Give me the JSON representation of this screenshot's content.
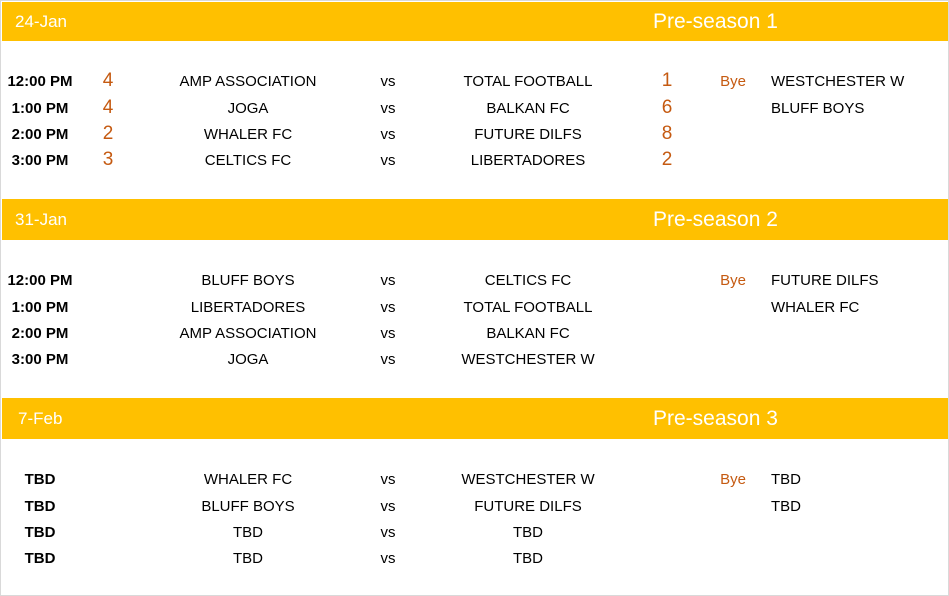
{
  "blocks": [
    {
      "date": "24-Jan",
      "season": "Pre-season 1",
      "bye_label": "Bye",
      "bye_teams": [
        "WESTCHESTER W",
        "BLUFF BOYS"
      ],
      "matches": [
        {
          "time": "12:00 PM",
          "home": "AMP ASSOCIATION",
          "vs": "vs",
          "away": "TOTAL FOOTBALL",
          "home_score": "4",
          "away_score": "1"
        },
        {
          "time": "1:00 PM",
          "home": "JOGA",
          "vs": "vs",
          "away": "BALKAN FC",
          "home_score": "4",
          "away_score": "6"
        },
        {
          "time": "2:00 PM",
          "home": "WHALER FC",
          "vs": "vs",
          "away": "FUTURE DILFS",
          "home_score": "2",
          "away_score": "8"
        },
        {
          "time": "3:00 PM",
          "home": "CELTICS FC",
          "vs": "vs",
          "away": "LIBERTADORES",
          "home_score": "3",
          "away_score": "2"
        }
      ]
    },
    {
      "date": "31-Jan",
      "season": "Pre-season 2",
      "bye_label": "Bye",
      "bye_teams": [
        "FUTURE DILFS",
        "WHALER FC"
      ],
      "matches": [
        {
          "time": "12:00 PM",
          "home": "BLUFF BOYS",
          "vs": "vs",
          "away": "CELTICS FC",
          "home_score": "",
          "away_score": ""
        },
        {
          "time": "1:00 PM",
          "home": "LIBERTADORES",
          "vs": "vs",
          "away": "TOTAL FOOTBALL",
          "home_score": "",
          "away_score": ""
        },
        {
          "time": "2:00 PM",
          "home": "AMP ASSOCIATION",
          "vs": "vs",
          "away": "BALKAN FC",
          "home_score": "",
          "away_score": ""
        },
        {
          "time": "3:00 PM",
          "home": "JOGA",
          "vs": "vs",
          "away": "WESTCHESTER W",
          "home_score": "",
          "away_score": ""
        }
      ]
    },
    {
      "date": "7-Feb",
      "season": "Pre-season 3",
      "bye_label": "Bye",
      "bye_teams": [
        "TBD",
        "TBD"
      ],
      "matches": [
        {
          "time": "TBD",
          "home": "WHALER FC",
          "vs": "vs",
          "away": "WESTCHESTER W",
          "home_score": "",
          "away_score": ""
        },
        {
          "time": "TBD",
          "home": "BLUFF BOYS",
          "vs": "vs",
          "away": "FUTURE DILFS",
          "home_score": "",
          "away_score": ""
        },
        {
          "time": "TBD",
          "home": "TBD",
          "vs": "vs",
          "away": "TBD",
          "home_score": "",
          "away_score": ""
        },
        {
          "time": "TBD",
          "home": "TBD",
          "vs": "vs",
          "away": "TBD",
          "home_score": "",
          "away_score": ""
        }
      ]
    }
  ]
}
